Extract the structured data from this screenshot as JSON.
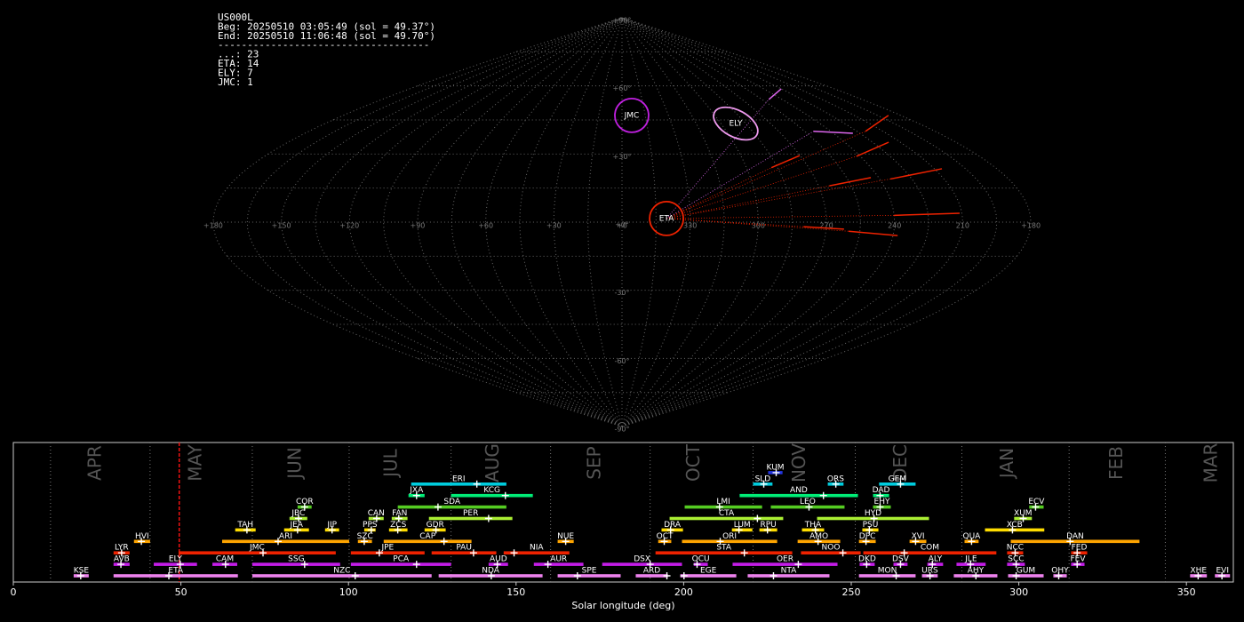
{
  "chart_data": [
    {
      "type": "map",
      "header_lines": [
        "US000L",
        "Beg: 20250510 03:05:49 (sol = 49.37°)",
        "End: 20250510 11:06:48 (sol = 49.70°)",
        "------------------------------------",
        "...: 23",
        "ETA: 14",
        "ELY: 7",
        "JMC: 1"
      ],
      "lon_ticks": [
        {
          "value": 180,
          "label": "+180"
        },
        {
          "value": 150,
          "label": "+150"
        },
        {
          "value": 120,
          "label": "+120"
        },
        {
          "value": 90,
          "label": "+90"
        },
        {
          "value": 60,
          "label": "+60"
        },
        {
          "value": 30,
          "label": "+30"
        },
        {
          "value": 0,
          "label": "+0"
        },
        {
          "value": -30,
          "label": "330"
        },
        {
          "value": -60,
          "label": "300"
        },
        {
          "value": -90,
          "label": "270"
        },
        {
          "value": -120,
          "label": "240"
        },
        {
          "value": -150,
          "label": "210"
        },
        {
          "value": -180,
          "label": "+180"
        }
      ],
      "lat_ticks": [
        {
          "value": 90,
          "label": "+90°"
        },
        {
          "value": 60,
          "label": "+60°"
        },
        {
          "value": 30,
          "label": "+30°"
        },
        {
          "value": 0,
          "label": "+0°"
        },
        {
          "value": -30,
          "label": "-30°"
        },
        {
          "value": -60,
          "label": "-60°"
        },
        {
          "value": -90,
          "label": "-90°"
        }
      ],
      "radiants": [
        {
          "name": "JMC",
          "lon": -6.3,
          "lat": 47,
          "color": "#c020e0"
        },
        {
          "name": "ELY",
          "lon": -68.9,
          "lat": 43.4,
          "color": "#ee99ee"
        },
        {
          "name": "ETA",
          "lon": -19.6,
          "lat": 1.6,
          "color": "#ee2200"
        }
      ],
      "trails": [
        {
          "color": "#ee2200",
          "lon": [
            -120,
            -149
          ],
          "lat": [
            3,
            3.9
          ]
        },
        {
          "color": "#ee2200",
          "lon": [
            -125,
            -153.6
          ],
          "lat": [
            19,
            23.5
          ]
        },
        {
          "color": "#ee2200",
          "lon": [
            -118,
            -143.7
          ],
          "lat": [
            29,
            35.2
          ]
        },
        {
          "color": "#ee2200",
          "lon": [
            -95,
            -116.3
          ],
          "lat": [
            16,
            19.6
          ]
        },
        {
          "color": "#ee2200",
          "lon": [
            -72,
            -89.7
          ],
          "lat": [
            24,
            29.3
          ]
        },
        {
          "color": "#ee2200",
          "lon": [
            -100,
            -122
          ],
          "lat": [
            -4,
            -5.9
          ]
        },
        {
          "color": "#ee2200",
          "lon": [
            -80,
            -97.9
          ],
          "lat": [
            -2,
            -3.1
          ]
        },
        {
          "color": "#ee2200",
          "lon": [
            -140,
            -172
          ],
          "lat": [
            40,
            47
          ]
        },
        {
          "color": "#dd66ee",
          "lon": [
            -110,
            -135
          ],
          "lat": [
            54,
            58.7
          ]
        },
        {
          "color": "#dd66ee",
          "lon": [
            -110,
            -131
          ],
          "lat": [
            40,
            39.1
          ]
        }
      ]
    },
    {
      "type": "timeline",
      "xlabel": "Solar longitude (deg)",
      "xlim": [
        0,
        364
      ],
      "xticks": [
        0,
        50,
        100,
        150,
        200,
        250,
        300,
        350
      ],
      "current_sol": 49.5,
      "month_lines": [
        11.1,
        40.8,
        71.3,
        100.2,
        130.6,
        160.3,
        190.0,
        220.7,
        251.2,
        283.0,
        315.0,
        343.7
      ],
      "months": [
        {
          "value": 24.6,
          "label": "APR"
        },
        {
          "value": 54.6,
          "label": "MAY"
        },
        {
          "value": 84.3,
          "label": "JUN"
        },
        {
          "value": 112.9,
          "label": "JUL"
        },
        {
          "value": 143.3,
          "label": "AUG"
        },
        {
          "value": 173.6,
          "label": "SEP"
        },
        {
          "value": 203.2,
          "label": "OCT"
        },
        {
          "value": 234.8,
          "label": "NOV"
        },
        {
          "value": 265.0,
          "label": "DEC"
        },
        {
          "value": 296.8,
          "label": "JAN"
        },
        {
          "value": 329.4,
          "label": "FEB"
        },
        {
          "value": 357.7,
          "label": "MAR"
        }
      ],
      "series": [
        {
          "color": "#ee82ee",
          "showers": [
            {
              "name": "KSE",
              "start": 18.0,
              "end": 22.5,
              "peak": 20.1
            },
            {
              "name": "ETA",
              "start": 29.9,
              "end": 67.0,
              "peak": 46.4
            },
            {
              "name": "NZC",
              "start": 71.3,
              "end": 124.8,
              "peak": 102.0
            },
            {
              "name": "NDA",
              "start": 126.9,
              "end": 157.9,
              "peak": 142.6
            },
            {
              "name": "SPE",
              "start": 162.4,
              "end": 181.2,
              "peak": 168.3
            },
            {
              "name": "ARD",
              "start": 185.7,
              "end": 195.3,
              "peak": 195.0
            },
            {
              "name": "EGE",
              "start": 199.0,
              "end": 215.7,
              "peak": 200.1
            },
            {
              "name": "NTA",
              "start": 219.1,
              "end": 243.5,
              "peak": 226.8
            },
            {
              "name": "MON",
              "start": 252.3,
              "end": 269.2,
              "peak": 263.4
            },
            {
              "name": "URS",
              "start": 271.1,
              "end": 275.8,
              "peak": 273.5
            },
            {
              "name": "AHY",
              "start": 280.6,
              "end": 293.6,
              "peak": 287.2
            },
            {
              "name": "GUM",
              "start": 296.8,
              "end": 307.4,
              "peak": 299.2
            },
            {
              "name": "OHY",
              "start": 310.3,
              "end": 314.3,
              "peak": 311.9
            },
            {
              "name": "XHE",
              "start": 351.1,
              "end": 356.1,
              "peak": 353.5
            },
            {
              "name": "EVI",
              "start": 358.5,
              "end": 363.0,
              "peak": 360.6
            }
          ]
        },
        {
          "color": "#c41de8",
          "showers": [
            {
              "name": "AVB",
              "start": 29.9,
              "end": 34.7,
              "peak": 32.1
            },
            {
              "name": "ELY",
              "start": 41.9,
              "end": 54.8,
              "peak": 49.8
            },
            {
              "name": "CAM",
              "start": 59.4,
              "end": 66.8,
              "peak": 63.3
            },
            {
              "name": "SSG",
              "start": 71.3,
              "end": 97.5,
              "peak": 86.9
            },
            {
              "name": "PCA",
              "start": 100.7,
              "end": 130.6,
              "peak": 120.3
            },
            {
              "name": "AUD",
              "start": 141.8,
              "end": 147.6,
              "peak": 144.4
            },
            {
              "name": "AUR",
              "start": 155.3,
              "end": 170.1,
              "peak": 159.5
            },
            {
              "name": "DSX",
              "start": 175.7,
              "end": 199.5,
              "peak": 190.0
            },
            {
              "name": "OCU",
              "start": 203.0,
              "end": 207.2,
              "peak": 204.0
            },
            {
              "name": "OER",
              "start": 214.6,
              "end": 245.9,
              "peak": 234.2
            },
            {
              "name": "DKD",
              "start": 252.5,
              "end": 257.0,
              "peak": 254.6
            },
            {
              "name": "DSV",
              "start": 262.6,
              "end": 266.8,
              "peak": 264.7
            },
            {
              "name": "ALY",
              "start": 272.7,
              "end": 277.4,
              "peak": 274.2
            },
            {
              "name": "JLE",
              "start": 281.4,
              "end": 290.1,
              "peak": 285.6
            },
            {
              "name": "SCC",
              "start": 296.5,
              "end": 301.8,
              "peak": 299.2
            },
            {
              "name": "FEV",
              "start": 315.6,
              "end": 319.6,
              "peak": 317.4
            }
          ]
        },
        {
          "color": "#ee2200",
          "showers": [
            {
              "name": "LYR",
              "start": 29.9,
              "end": 34.7,
              "peak": 32.3
            },
            {
              "name": "JMC",
              "start": 49.3,
              "end": 96.2,
              "peak": 74.5
            },
            {
              "name": "JPE",
              "start": 100.7,
              "end": 122.7,
              "peak": 109.2
            },
            {
              "name": "PAU",
              "start": 124.8,
              "end": 144.1,
              "peak": 137.3
            },
            {
              "name": "NIA",
              "start": 146.3,
              "end": 165.9,
              "peak": 149.4
            },
            {
              "name": "STA",
              "start": 191.6,
              "end": 232.4,
              "peak": 218.1
            },
            {
              "name": "NOO",
              "start": 235.0,
              "end": 252.8,
              "peak": 247.5
            },
            {
              "name": "COM",
              "start": 253.6,
              "end": 293.3,
              "peak": 265.8
            },
            {
              "name": "NCC",
              "start": 296.5,
              "end": 301.3,
              "peak": 298.9
            },
            {
              "name": "FED",
              "start": 315.6,
              "end": 320.4,
              "peak": 317.4
            }
          ]
        },
        {
          "color": "#ffa500",
          "showers": [
            {
              "name": "HVI",
              "start": 36.0,
              "end": 40.8,
              "peak": 38.2
            },
            {
              "name": "ARI",
              "start": 62.3,
              "end": 100.2,
              "peak": 79.0
            },
            {
              "name": "SZC",
              "start": 102.8,
              "end": 107.0,
              "peak": 104.7
            },
            {
              "name": "CAP",
              "start": 110.5,
              "end": 136.7,
              "peak": 128.5
            },
            {
              "name": "NUE",
              "start": 162.4,
              "end": 167.2,
              "peak": 164.8
            },
            {
              "name": "OCT",
              "start": 192.4,
              "end": 196.3,
              "peak": 194.2
            },
            {
              "name": "ORI",
              "start": 199.5,
              "end": 227.9,
              "peak": 210.9
            },
            {
              "name": "AMO",
              "start": 234.0,
              "end": 246.7,
              "peak": 240.1
            },
            {
              "name": "DPC",
              "start": 252.3,
              "end": 257.3,
              "peak": 254.4
            },
            {
              "name": "XVI",
              "start": 267.4,
              "end": 272.4,
              "peak": 269.2
            },
            {
              "name": "QUA",
              "start": 283.8,
              "end": 288.0,
              "peak": 285.9
            },
            {
              "name": "DAN",
              "start": 297.6,
              "end": 336.0,
              "peak": 315.3
            }
          ]
        },
        {
          "color": "#ffdd00",
          "showers": [
            {
              "name": "TAH",
              "start": 66.2,
              "end": 72.3,
              "peak": 69.7
            },
            {
              "name": "JEA",
              "start": 80.8,
              "end": 88.2,
              "peak": 84.8
            },
            {
              "name": "JIP",
              "start": 93.0,
              "end": 97.2,
              "peak": 95.1
            },
            {
              "name": "PPS",
              "start": 104.7,
              "end": 108.1,
              "peak": 106.8
            },
            {
              "name": "ZCS",
              "start": 112.1,
              "end": 117.6,
              "peak": 114.7
            },
            {
              "name": "GDR",
              "start": 122.7,
              "end": 129.0,
              "peak": 126.1
            },
            {
              "name": "DRA",
              "start": 193.4,
              "end": 199.8,
              "peak": 196.1
            },
            {
              "name": "LUM",
              "start": 214.4,
              "end": 220.5,
              "peak": 216.5
            },
            {
              "name": "RPU",
              "start": 222.6,
              "end": 227.9,
              "peak": 225.0
            },
            {
              "name": "THA",
              "start": 235.3,
              "end": 241.9,
              "peak": 239.3
            },
            {
              "name": "PSU",
              "start": 253.3,
              "end": 258.1,
              "peak": 255.4
            },
            {
              "name": "XCB",
              "start": 289.9,
              "end": 307.6,
              "peak": 298.1
            }
          ]
        },
        {
          "color": "#aaee33",
          "showers": [
            {
              "name": "JBC",
              "start": 82.4,
              "end": 87.7,
              "peak": 85.1
            },
            {
              "name": "CAN",
              "start": 106.0,
              "end": 110.5,
              "peak": 108.4
            },
            {
              "name": "FAN",
              "start": 112.9,
              "end": 117.6,
              "peak": 115.0
            },
            {
              "name": "PER",
              "start": 124.0,
              "end": 148.9,
              "peak": 141.8
            },
            {
              "name": "CTA",
              "start": 195.8,
              "end": 229.7,
              "peak": 222.0
            },
            {
              "name": "HYD",
              "start": 239.8,
              "end": 273.2,
              "peak": 256.8
            },
            {
              "name": "XUM",
              "start": 298.6,
              "end": 303.9,
              "peak": 301.3
            }
          ]
        },
        {
          "color": "#55cc22",
          "showers": [
            {
              "name": "COR",
              "start": 84.8,
              "end": 89.0,
              "peak": 86.9
            },
            {
              "name": "SDA",
              "start": 114.7,
              "end": 147.1,
              "peak": 126.7
            },
            {
              "name": "LMI",
              "start": 200.3,
              "end": 223.4,
              "peak": 210.7
            },
            {
              "name": "LEO",
              "start": 226.0,
              "end": 248.0,
              "peak": 237.4
            },
            {
              "name": "EHY",
              "start": 256.5,
              "end": 261.8,
              "peak": 258.6
            },
            {
              "name": "ECV",
              "start": 303.1,
              "end": 307.4,
              "peak": 305.0
            }
          ]
        },
        {
          "color": "#00ee77",
          "showers": [
            {
              "name": "JXA",
              "start": 117.9,
              "end": 122.7,
              "peak": 120.3
            },
            {
              "name": "KCG",
              "start": 130.6,
              "end": 155.0,
              "peak": 146.8
            },
            {
              "name": "AND",
              "start": 216.7,
              "end": 252.0,
              "peak": 241.7
            },
            {
              "name": "DAD",
              "start": 256.5,
              "end": 261.3,
              "peak": 258.6
            }
          ]
        },
        {
          "color": "#00ccdd",
          "showers": [
            {
              "name": "ERI",
              "start": 118.7,
              "end": 147.1,
              "peak": 138.3
            },
            {
              "name": "SLD",
              "start": 220.7,
              "end": 226.5,
              "peak": 223.9
            },
            {
              "name": "ORS",
              "start": 243.0,
              "end": 247.7,
              "peak": 245.4
            },
            {
              "name": "GEM",
              "start": 258.3,
              "end": 269.2,
              "peak": 264.7
            }
          ]
        },
        {
          "color": "#2233dd",
          "showers": [
            {
              "name": "KUM",
              "start": 225.2,
              "end": 229.5,
              "peak": 227.6
            }
          ]
        }
      ]
    }
  ]
}
